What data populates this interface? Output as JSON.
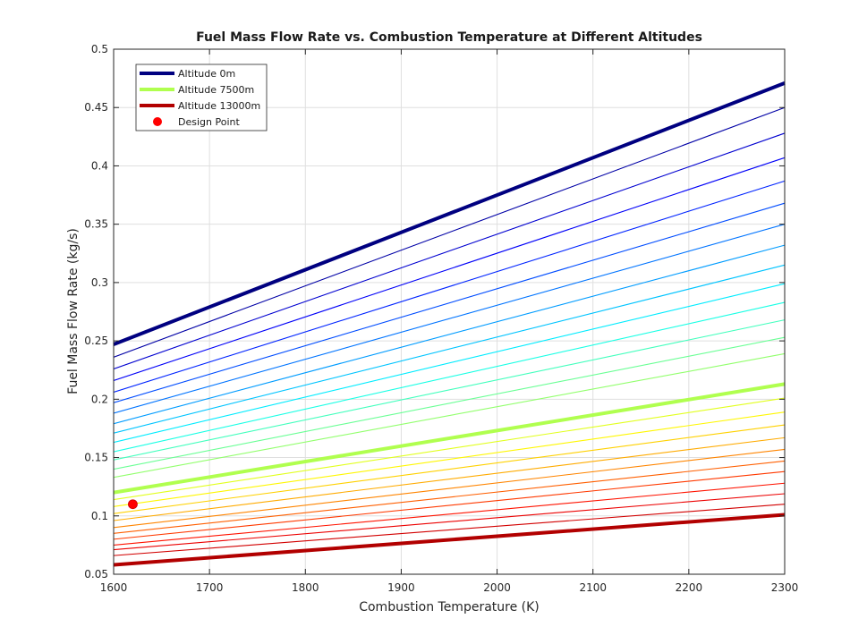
{
  "chart_data": {
    "type": "line",
    "title": "Fuel Mass Flow Rate vs. Combustion Temperature at Different Altitudes",
    "xlabel": "Combustion Temperature (K)",
    "ylabel": "Fuel Mass Flow Rate (kg/s)",
    "xlim": [
      1600,
      2300
    ],
    "ylim": [
      0.05,
      0.5
    ],
    "x_ticks": [
      1600,
      1700,
      1800,
      1900,
      2000,
      2100,
      2200,
      2300
    ],
    "y_ticks": [
      0.05,
      0.1,
      0.15,
      0.2,
      0.25,
      0.3,
      0.35,
      0.4,
      0.45,
      0.5
    ],
    "grid": true,
    "legend_location": "top-left",
    "colormap": "jet",
    "x": [
      1600,
      2300
    ],
    "series": [
      {
        "name": "Altitude 0m",
        "values": [
          0.247,
          0.471
        ],
        "color": "#000080",
        "highlight": true
      },
      {
        "values": [
          0.236,
          0.45
        ],
        "color": "#0000a6"
      },
      {
        "values": [
          0.226,
          0.428
        ],
        "color": "#0000d0"
      },
      {
        "values": [
          0.216,
          0.407
        ],
        "color": "#0000f8"
      },
      {
        "values": [
          0.206,
          0.387
        ],
        "color": "#0024ff"
      },
      {
        "values": [
          0.197,
          0.368
        ],
        "color": "#004cff"
      },
      {
        "values": [
          0.188,
          0.35
        ],
        "color": "#0074ff"
      },
      {
        "values": [
          0.179,
          0.332
        ],
        "color": "#009cff"
      },
      {
        "values": [
          0.171,
          0.315
        ],
        "color": "#00c4ff"
      },
      {
        "values": [
          0.163,
          0.299
        ],
        "color": "#00ecff"
      },
      {
        "values": [
          0.155,
          0.283
        ],
        "color": "#1affe5"
      },
      {
        "values": [
          0.148,
          0.268
        ],
        "color": "#42ffbd"
      },
      {
        "values": [
          0.14,
          0.253
        ],
        "color": "#6aff95"
      },
      {
        "values": [
          0.133,
          0.239
        ],
        "color": "#92ff6d"
      },
      {
        "name": "Altitude 7500m",
        "values": [
          0.12,
          0.213
        ],
        "color": "#b0ff4f",
        "highlight": true
      },
      {
        "values": [
          0.114,
          0.201
        ],
        "color": "#e2ff1d"
      },
      {
        "values": [
          0.108,
          0.189
        ],
        "color": "#fff700"
      },
      {
        "values": [
          0.102,
          0.178
        ],
        "color": "#ffd100"
      },
      {
        "values": [
          0.096,
          0.167
        ],
        "color": "#ffab00"
      },
      {
        "values": [
          0.09,
          0.157
        ],
        "color": "#ff8500"
      },
      {
        "values": [
          0.085,
          0.147
        ],
        "color": "#ff5f00"
      },
      {
        "values": [
          0.08,
          0.138
        ],
        "color": "#ff3900"
      },
      {
        "values": [
          0.075,
          0.128
        ],
        "color": "#ff1300"
      },
      {
        "values": [
          0.071,
          0.119
        ],
        "color": "#ec0000"
      },
      {
        "values": [
          0.066,
          0.11
        ],
        "color": "#d20000"
      },
      {
        "name": "Altitude 13000m",
        "values": [
          0.058,
          0.101
        ],
        "color": "#b20000",
        "highlight": true
      }
    ],
    "points": [
      {
        "name": "Design Point",
        "x": 1620,
        "y": 0.11,
        "color": "#ff0000"
      }
    ]
  }
}
